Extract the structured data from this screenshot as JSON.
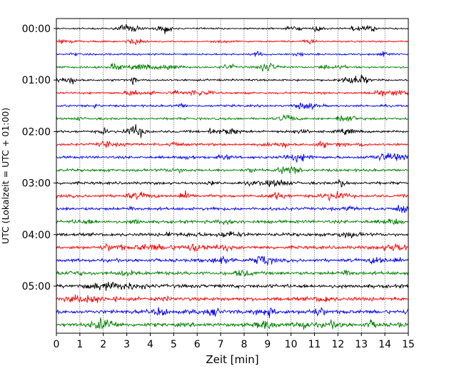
{
  "chart_data": {
    "type": "line",
    "title": "",
    "xlabel": "Zeit  [min]",
    "ylabel": "UTC (Lokalzeit = UTC + 01:00)",
    "xlim": [
      0,
      15
    ],
    "x_ticks": [
      "0",
      "1",
      "2",
      "3",
      "4",
      "5",
      "6",
      "7",
      "8",
      "9",
      "10",
      "11",
      "12",
      "13",
      "14",
      "15"
    ],
    "y_tick_labels": [
      "00:00",
      "01:00",
      "02:00",
      "03:00",
      "04:00",
      "05:00"
    ],
    "trace_interval_minutes": 15,
    "trace_count": 24,
    "trace_colors": [
      "#000000",
      "#ff0000",
      "#0000ff",
      "#008000"
    ],
    "grid_x": "dotted",
    "legend": "none"
  }
}
